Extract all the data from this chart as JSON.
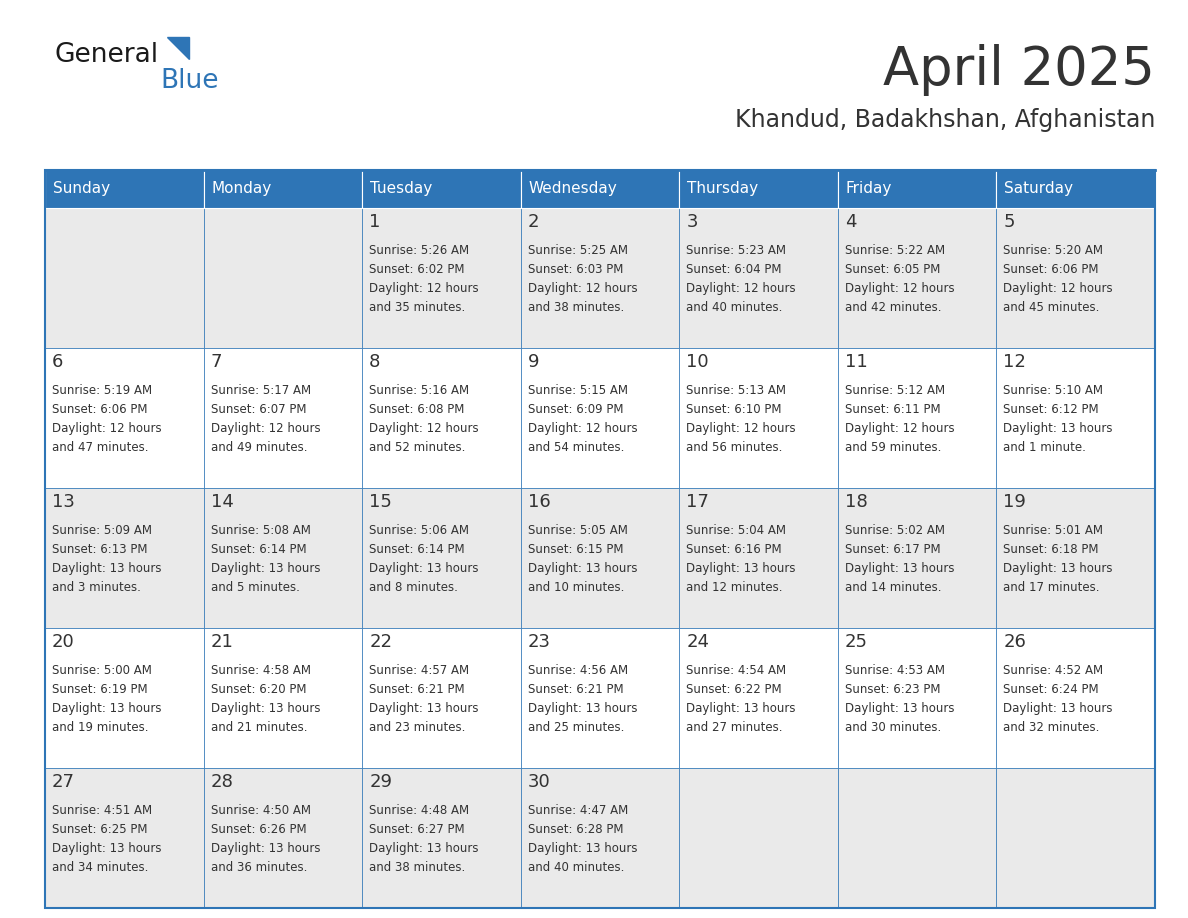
{
  "title": "April 2025",
  "subtitle": "Khandud, Badakhshan, Afghanistan",
  "header_bg": "#2E75B6",
  "header_text_color": "#FFFFFF",
  "cell_bg_light": "#EAEAEA",
  "cell_bg_white": "#FFFFFF",
  "border_color": "#2E75B6",
  "text_color": "#333333",
  "days_of_week": [
    "Sunday",
    "Monday",
    "Tuesday",
    "Wednesday",
    "Thursday",
    "Friday",
    "Saturday"
  ],
  "calendar_data": [
    [
      {
        "day": "",
        "sunrise": "",
        "sunset": "",
        "daylight": ""
      },
      {
        "day": "",
        "sunrise": "",
        "sunset": "",
        "daylight": ""
      },
      {
        "day": "1",
        "sunrise": "5:26 AM",
        "sunset": "6:02 PM",
        "daylight": "12 hours\nand 35 minutes."
      },
      {
        "day": "2",
        "sunrise": "5:25 AM",
        "sunset": "6:03 PM",
        "daylight": "12 hours\nand 38 minutes."
      },
      {
        "day": "3",
        "sunrise": "5:23 AM",
        "sunset": "6:04 PM",
        "daylight": "12 hours\nand 40 minutes."
      },
      {
        "day": "4",
        "sunrise": "5:22 AM",
        "sunset": "6:05 PM",
        "daylight": "12 hours\nand 42 minutes."
      },
      {
        "day": "5",
        "sunrise": "5:20 AM",
        "sunset": "6:06 PM",
        "daylight": "12 hours\nand 45 minutes."
      }
    ],
    [
      {
        "day": "6",
        "sunrise": "5:19 AM",
        "sunset": "6:06 PM",
        "daylight": "12 hours\nand 47 minutes."
      },
      {
        "day": "7",
        "sunrise": "5:17 AM",
        "sunset": "6:07 PM",
        "daylight": "12 hours\nand 49 minutes."
      },
      {
        "day": "8",
        "sunrise": "5:16 AM",
        "sunset": "6:08 PM",
        "daylight": "12 hours\nand 52 minutes."
      },
      {
        "day": "9",
        "sunrise": "5:15 AM",
        "sunset": "6:09 PM",
        "daylight": "12 hours\nand 54 minutes."
      },
      {
        "day": "10",
        "sunrise": "5:13 AM",
        "sunset": "6:10 PM",
        "daylight": "12 hours\nand 56 minutes."
      },
      {
        "day": "11",
        "sunrise": "5:12 AM",
        "sunset": "6:11 PM",
        "daylight": "12 hours\nand 59 minutes."
      },
      {
        "day": "12",
        "sunrise": "5:10 AM",
        "sunset": "6:12 PM",
        "daylight": "13 hours\nand 1 minute."
      }
    ],
    [
      {
        "day": "13",
        "sunrise": "5:09 AM",
        "sunset": "6:13 PM",
        "daylight": "13 hours\nand 3 minutes."
      },
      {
        "day": "14",
        "sunrise": "5:08 AM",
        "sunset": "6:14 PM",
        "daylight": "13 hours\nand 5 minutes."
      },
      {
        "day": "15",
        "sunrise": "5:06 AM",
        "sunset": "6:14 PM",
        "daylight": "13 hours\nand 8 minutes."
      },
      {
        "day": "16",
        "sunrise": "5:05 AM",
        "sunset": "6:15 PM",
        "daylight": "13 hours\nand 10 minutes."
      },
      {
        "day": "17",
        "sunrise": "5:04 AM",
        "sunset": "6:16 PM",
        "daylight": "13 hours\nand 12 minutes."
      },
      {
        "day": "18",
        "sunrise": "5:02 AM",
        "sunset": "6:17 PM",
        "daylight": "13 hours\nand 14 minutes."
      },
      {
        "day": "19",
        "sunrise": "5:01 AM",
        "sunset": "6:18 PM",
        "daylight": "13 hours\nand 17 minutes."
      }
    ],
    [
      {
        "day": "20",
        "sunrise": "5:00 AM",
        "sunset": "6:19 PM",
        "daylight": "13 hours\nand 19 minutes."
      },
      {
        "day": "21",
        "sunrise": "4:58 AM",
        "sunset": "6:20 PM",
        "daylight": "13 hours\nand 21 minutes."
      },
      {
        "day": "22",
        "sunrise": "4:57 AM",
        "sunset": "6:21 PM",
        "daylight": "13 hours\nand 23 minutes."
      },
      {
        "day": "23",
        "sunrise": "4:56 AM",
        "sunset": "6:21 PM",
        "daylight": "13 hours\nand 25 minutes."
      },
      {
        "day": "24",
        "sunrise": "4:54 AM",
        "sunset": "6:22 PM",
        "daylight": "13 hours\nand 27 minutes."
      },
      {
        "day": "25",
        "sunrise": "4:53 AM",
        "sunset": "6:23 PM",
        "daylight": "13 hours\nand 30 minutes."
      },
      {
        "day": "26",
        "sunrise": "4:52 AM",
        "sunset": "6:24 PM",
        "daylight": "13 hours\nand 32 minutes."
      }
    ],
    [
      {
        "day": "27",
        "sunrise": "4:51 AM",
        "sunset": "6:25 PM",
        "daylight": "13 hours\nand 34 minutes."
      },
      {
        "day": "28",
        "sunrise": "4:50 AM",
        "sunset": "6:26 PM",
        "daylight": "13 hours\nand 36 minutes."
      },
      {
        "day": "29",
        "sunrise": "4:48 AM",
        "sunset": "6:27 PM",
        "daylight": "13 hours\nand 38 minutes."
      },
      {
        "day": "30",
        "sunrise": "4:47 AM",
        "sunset": "6:28 PM",
        "daylight": "13 hours\nand 40 minutes."
      },
      {
        "day": "",
        "sunrise": "",
        "sunset": "",
        "daylight": ""
      },
      {
        "day": "",
        "sunrise": "",
        "sunset": "",
        "daylight": ""
      },
      {
        "day": "",
        "sunrise": "",
        "sunset": "",
        "daylight": ""
      }
    ]
  ],
  "logo_general_color": "#1a1a1a",
  "logo_blue_color": "#2E75B6",
  "logo_triangle_color": "#2E75B6"
}
